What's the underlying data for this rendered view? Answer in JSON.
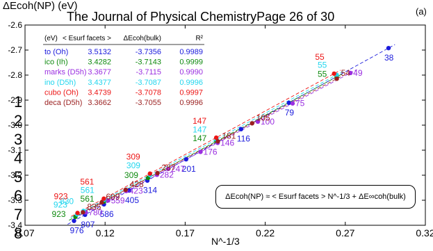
{
  "header": {
    "y_axis_title": "ΔEcoh(NP) (eV)",
    "panel_tag": "(a)",
    "journal_watermark": "The Journal of Physical Chemistry",
    "page_label": "Page 26 of 30",
    "margin_line_numbers": [
      "1",
      "2",
      "3",
      "4",
      "5",
      "6",
      "7",
      "8"
    ]
  },
  "chart_data": {
    "type": "scatter",
    "xlabel": "N^-1/3",
    "ylabel": "ΔEcoh(NP) (eV)",
    "xlim": [
      0.07,
      0.32
    ],
    "ylim": [
      -3.4,
      -2.6
    ],
    "xticks": [
      "0.07",
      "0.12",
      "0.17",
      "0.22",
      "0.27",
      "0.32"
    ],
    "yticks": [
      "-2.6",
      "-2.7",
      "-2.8",
      "-2.9",
      "-3.0",
      "-3.1",
      "-3.2",
      "-3.3",
      "-3.4"
    ],
    "formula": "ΔEcoh(NP) ≈ < Esurf facets > N^-1/3 + ΔE∞coh(bulk)",
    "table": {
      "headers": [
        "(eV)",
        "< Esurf facets >",
        "ΔEcoh(bulk)",
        "R²"
      ],
      "rows": [
        [
          "to (Oh)",
          "3.5132",
          "-3.7356",
          "0.9989"
        ],
        [
          "ico (Ih)",
          "3.4282",
          "-3.7143",
          "0.9999"
        ],
        [
          "marks (D5h)",
          "3.3677",
          "-3.7115",
          "0.9990"
        ],
        [
          "ino (D5h)",
          "3.4377",
          "-3.7087",
          "0.9996"
        ],
        [
          "cubo (Oh)",
          "3.4739",
          "-3.7078",
          "0.9997"
        ],
        [
          "deca (D5h)",
          "3.3662",
          "-3.7055",
          "0.9996"
        ]
      ]
    },
    "series": [
      {
        "name": "to",
        "color": "#1a1adc",
        "slope": 3.5132,
        "intercept": -3.7356,
        "points": [
          {
            "x": 0.1006,
            "y": -3.3823,
            "label": "976"
          },
          {
            "x": 0.1075,
            "y": -3.358,
            "label": "807"
          },
          {
            "x": 0.1193,
            "y": -3.3164,
            "label": "586"
          },
          {
            "x": 0.1351,
            "y": -3.261,
            "label": "405"
          },
          {
            "x": 0.1464,
            "y": -3.2214,
            "label": "314"
          },
          {
            "x": 0.1706,
            "y": -3.1363,
            "label": "201"
          },
          {
            "x": 0.2049,
            "y": -3.0158,
            "label": "116"
          },
          {
            "x": 0.2348,
            "y": -2.9107,
            "label": "79"
          },
          {
            "x": 0.297,
            "y": -2.6921,
            "label": "38"
          }
        ]
      },
      {
        "name": "ico",
        "color": "#0f8a0f",
        "slope": 3.4282,
        "intercept": -3.7143,
        "points": [
          {
            "x": 0.1015,
            "y": -3.3664,
            "label": "923"
          },
          {
            "x": 0.1193,
            "y": -3.3053,
            "label": "561"
          },
          {
            "x": 0.1468,
            "y": -3.211,
            "label": "309"
          },
          {
            "x": 0.1895,
            "y": -3.0645,
            "label": "147"
          },
          {
            "x": 0.2646,
            "y": -2.8072,
            "label": "55"
          }
        ]
      },
      {
        "name": "marks",
        "color": "#9a2ee0",
        "slope": 3.3677,
        "intercept": -3.7115,
        "points": [
          {
            "x": 0.1079,
            "y": -3.3481,
            "label": "780"
          },
          {
            "x": 0.1219,
            "y": -3.3009,
            "label": "559"
          },
          {
            "x": 0.1332,
            "y": -3.263,
            "label": "423"
          },
          {
            "x": 0.1524,
            "y": -3.1982,
            "label": "282"
          },
          {
            "x": 0.1594,
            "y": -3.1747,
            "label": "247"
          },
          {
            "x": 0.1796,
            "y": -3.1066,
            "label": "176"
          },
          {
            "x": 0.1903,
            "y": -3.0707,
            "label": "146"
          },
          {
            "x": 0.2154,
            "y": -2.986,
            "label": "100"
          },
          {
            "x": 0.2371,
            "y": -2.9131,
            "label": "75"
          },
          {
            "x": 0.2732,
            "y": -2.7915,
            "label": "49"
          }
        ]
      },
      {
        "name": "ino",
        "color": "#22d6ee",
        "slope": 3.4377,
        "intercept": -3.7087,
        "points": [
          {
            "x": 0.1025,
            "y": -3.3563,
            "label": "923"
          },
          {
            "x": 0.1065,
            "y": -3.3426,
            "label": "830"
          },
          {
            "x": 0.1194,
            "y": -3.2982,
            "label": "561"
          },
          {
            "x": 0.1481,
            "y": -3.1996,
            "label": "309"
          },
          {
            "x": 0.1895,
            "y": -3.0573,
            "label": "147"
          },
          {
            "x": 0.2646,
            "y": -2.799,
            "label": "55"
          }
        ]
      },
      {
        "name": "cubo",
        "color": "#ec1616",
        "slope": 3.4739,
        "intercept": -3.7078,
        "points": [
          {
            "x": 0.1028,
            "y": -3.3508,
            "label": "923"
          },
          {
            "x": 0.1192,
            "y": -3.2937,
            "label": "561"
          },
          {
            "x": 0.148,
            "y": -3.1937,
            "label": "309"
          },
          {
            "x": 0.1894,
            "y": -3.05,
            "label": "147"
          },
          {
            "x": 0.263,
            "y": -2.7942,
            "label": "55"
          }
        ]
      },
      {
        "name": "deca",
        "color": "#9a1f1f",
        "slope": 3.3662,
        "intercept": -3.7055,
        "points": [
          {
            "x": 0.1062,
            "y": -3.348,
            "label": "835"
          },
          {
            "x": 0.1179,
            "y": -3.3086,
            "label": "609"
          },
          {
            "x": 0.1328,
            "y": -3.2585,
            "label": "428"
          },
          {
            "x": 0.1527,
            "y": -3.1915,
            "label": "287"
          },
          {
            "x": 0.1904,
            "y": -3.0646,
            "label": "181"
          },
          {
            "x": 0.2118,
            "y": -2.9925,
            "label": "105"
          },
          {
            "x": 0.2647,
            "y": -2.8145,
            "label": "54"
          }
        ]
      }
    ]
  }
}
